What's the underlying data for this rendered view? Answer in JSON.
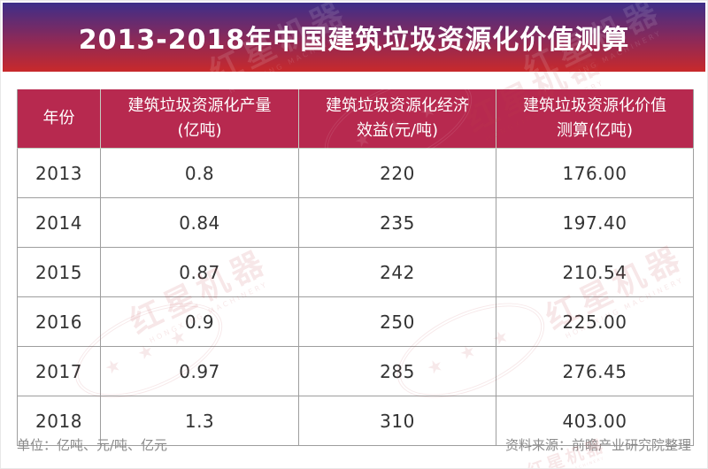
{
  "page": {
    "title": "2013-2018年中国建筑垃圾资源化价值测算"
  },
  "table": {
    "headers": [
      "年份",
      "建筑垃圾资源化产量\n(亿吨)",
      "建筑垃圾资源化经济\n效益(元/吨)",
      "建筑垃圾资源化价值\n测算(亿吨)"
    ],
    "rows": [
      [
        "2013",
        "0.8",
        "220",
        "176.00"
      ],
      [
        "2014",
        "0.84",
        "235",
        "197.40"
      ],
      [
        "2015",
        "0.87",
        "242",
        "210.54"
      ],
      [
        "2016",
        "0.9",
        "250",
        "225.00"
      ],
      [
        "2017",
        "0.97",
        "285",
        "276.45"
      ],
      [
        "2018",
        "1.3",
        "310",
        "403.00"
      ]
    ]
  },
  "footer": {
    "units": "单位：亿吨、元/吨、亿元",
    "source": "资料来源：前瞻产业研究院整理"
  },
  "watermark": {
    "text": "红星机器",
    "subtext": "HONGXING MACHINERY",
    "stars": "★ ★ ★"
  },
  "colors": {
    "banner_gradient_top": "#3D2E89",
    "banner_gradient_bottom": "#C9292B",
    "table_header_bg": "#B7294F",
    "grid_line": "#9E9E9E",
    "body_text": "#333333",
    "footer_text": "#8A8A8A"
  },
  "chart_data": {
    "type": "table",
    "title": "2013-2018年中国建筑垃圾资源化价值测算",
    "columns": [
      "年份",
      "建筑垃圾资源化产量(亿吨)",
      "建筑垃圾资源化经济效益(元/吨)",
      "建筑垃圾资源化价值测算(亿吨)"
    ],
    "rows": [
      [
        "2013",
        0.8,
        220,
        176.0
      ],
      [
        "2014",
        0.84,
        235,
        197.4
      ],
      [
        "2015",
        0.87,
        242,
        210.54
      ],
      [
        "2016",
        0.9,
        250,
        225.0
      ],
      [
        "2017",
        0.97,
        285,
        276.45
      ],
      [
        "2018",
        1.3,
        310,
        403.0
      ]
    ],
    "units_note": "单位：亿吨、元/吨、亿元",
    "source": "资料来源：前瞻产业研究院整理"
  }
}
